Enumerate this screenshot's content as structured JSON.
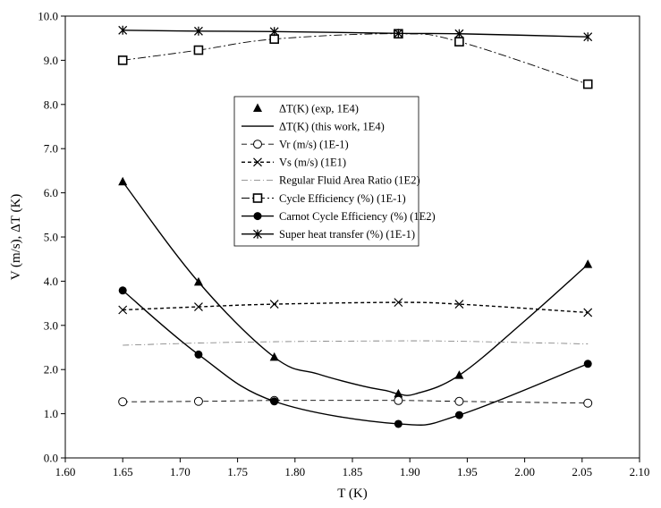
{
  "chart_data": {
    "type": "line",
    "xlabel": "T (K)",
    "ylabel": "V (m/s), ΔT (K)",
    "xlim": [
      1.6,
      2.1
    ],
    "ylim": [
      0.0,
      10.0
    ],
    "x_ticks": [
      "1.60",
      "1.65",
      "1.70",
      "1.75",
      "1.80",
      "1.85",
      "1.90",
      "1.95",
      "2.00",
      "2.05",
      "2.10"
    ],
    "y_ticks": [
      "0.0",
      "1.0",
      "2.0",
      "3.0",
      "4.0",
      "5.0",
      "6.0",
      "7.0",
      "8.0",
      "9.0",
      "10.0"
    ],
    "grid": false,
    "legend_position": "center-right",
    "series": [
      {
        "name": "ΔT(K) (exp, 1E4)",
        "marker": "triangle",
        "line": "none",
        "x": [
          1.65,
          1.716,
          1.782,
          1.89,
          1.943,
          2.055
        ],
        "y": [
          6.25,
          3.98,
          2.28,
          1.45,
          1.87,
          4.38
        ]
      },
      {
        "name": "ΔT(K) (this work, 1E4)",
        "marker": "none",
        "line": "solid",
        "x": [
          1.65,
          1.716,
          1.782,
          1.82,
          1.86,
          1.88,
          1.89,
          1.905,
          1.943,
          2.0,
          2.055
        ],
        "y": [
          6.25,
          3.98,
          2.28,
          1.9,
          1.62,
          1.52,
          1.45,
          1.45,
          1.87,
          3.1,
          4.38
        ]
      },
      {
        "name": "Vr (m/s) (1E-1)",
        "marker": "open-circle",
        "line": "dashed",
        "x": [
          1.65,
          1.716,
          1.782,
          1.89,
          1.943,
          2.055
        ],
        "y": [
          1.27,
          1.28,
          1.3,
          1.3,
          1.28,
          1.24
        ]
      },
      {
        "name": "Vs (m/s) (1E1)",
        "marker": "x",
        "line": "short-dash",
        "x": [
          1.65,
          1.716,
          1.782,
          1.89,
          1.943,
          2.055
        ],
        "y": [
          3.35,
          3.42,
          3.48,
          3.52,
          3.48,
          3.29
        ]
      },
      {
        "name": "Regular Fluid Area Ratio (1E2)",
        "marker": "none",
        "line": "dash-dot",
        "x": [
          1.65,
          1.716,
          1.782,
          1.89,
          1.943,
          2.055
        ],
        "y": [
          2.55,
          2.6,
          2.63,
          2.65,
          2.64,
          2.58
        ]
      },
      {
        "name": "Cycle Efficiency (%) (1E-1)",
        "marker": "open-square",
        "line": "long-dash-dot",
        "x": [
          1.65,
          1.716,
          1.782,
          1.89,
          1.943,
          2.055
        ],
        "y": [
          9.0,
          9.23,
          9.48,
          9.6,
          9.42,
          8.46
        ]
      },
      {
        "name": "Carnot Cycle Efficiency (%) (1E2)",
        "marker": "filled-circle",
        "line": "solid",
        "x": [
          1.65,
          1.716,
          1.782,
          1.89,
          1.943,
          2.055
        ],
        "y": [
          3.79,
          2.34,
          1.28,
          0.77,
          0.97,
          2.13
        ]
      },
      {
        "name": "Super heat transfer (%) (1E-1)",
        "marker": "asterisk",
        "line": "solid",
        "x": [
          1.65,
          1.716,
          1.782,
          1.89,
          1.943,
          2.055
        ],
        "y": [
          9.68,
          9.66,
          9.65,
          9.61,
          9.6,
          9.53
        ]
      }
    ]
  }
}
